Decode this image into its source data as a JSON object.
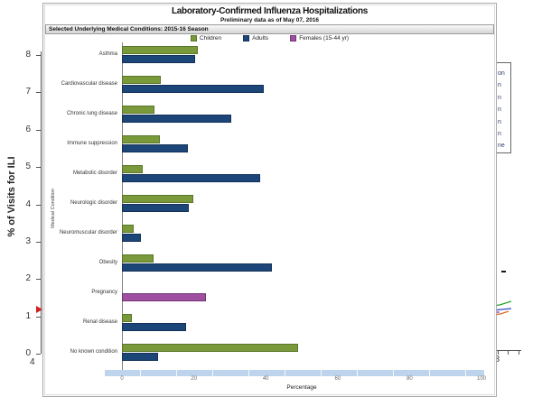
{
  "popup": {
    "title": "Laboratory-Confirmed Influenza Hospitalizations",
    "subtitle": "Preliminary data as of May 07, 2016",
    "header": "Selected Underlying Medical Conditions: 2015-16 Season",
    "legend": [
      {
        "label": "Children",
        "key": "children"
      },
      {
        "label": "Adults",
        "key": "adults"
      },
      {
        "label": "Females (15-44 yr)",
        "key": "females"
      }
    ]
  },
  "chart_data": {
    "type": "bar",
    "orientation": "horizontal",
    "title": "Selected Underlying Medical Conditions: 2015-16 Season",
    "categories": [
      "Asthma",
      "Cardiovascular disease",
      "Chronic lung disease",
      "Immune suppression",
      "Metabolic disorder",
      "Neurologic disorder",
      "Neuromuscular disorder",
      "Obesity",
      "Pregnancy",
      "Renal disease",
      "No known condition"
    ],
    "series": [
      {
        "name": "Children",
        "color_key": "children",
        "values": [
          20.5,
          10.3,
          8.5,
          10,
          5.2,
          19.3,
          2.7,
          8.4,
          null,
          2.2,
          48.5
        ]
      },
      {
        "name": "Adults",
        "color_key": "adults",
        "values": [
          19.8,
          39,
          29.8,
          17.8,
          38,
          18.2,
          4.8,
          41.3,
          null,
          17.3,
          9.5
        ]
      },
      {
        "name": "Females (15-44 yr)",
        "color_key": "females",
        "values": [
          null,
          null,
          null,
          null,
          null,
          null,
          null,
          null,
          22.8,
          null,
          null
        ]
      }
    ],
    "xlabel": "Percentage",
    "ylabel": "Medical Condition",
    "xlim": [
      0,
      100
    ],
    "x_ticks": [
      0,
      20,
      40,
      60,
      80,
      100
    ],
    "legend_position": "top",
    "grid": false
  },
  "background_chart": {
    "type": "line",
    "ylabel": "% of Visits for ILI",
    "y_ticks": [
      8,
      7,
      6,
      5,
      4,
      3,
      2,
      1,
      0
    ],
    "ylim": [
      0,
      8
    ],
    "x_tick_left": "4",
    "x_tick_right": "38",
    "legend_fragments": [
      "on",
      "n",
      "n",
      "n",
      "n",
      "n",
      "ne"
    ],
    "baseline_dash_y_value": 2.2,
    "marker_y_value": 1.2
  },
  "colors": {
    "children": "#7a993a",
    "children_border": "#59772a",
    "adults": "#1d4678",
    "adults_border": "#133158",
    "females": "#9e4fa0",
    "females_border": "#703677",
    "scrollbar_track": "#bed3ec",
    "baseline_marker": "#cc2222",
    "bg_curves": [
      "#2ca02c",
      "#2b48c8",
      "#8a3bb0",
      "#e2661f"
    ]
  }
}
